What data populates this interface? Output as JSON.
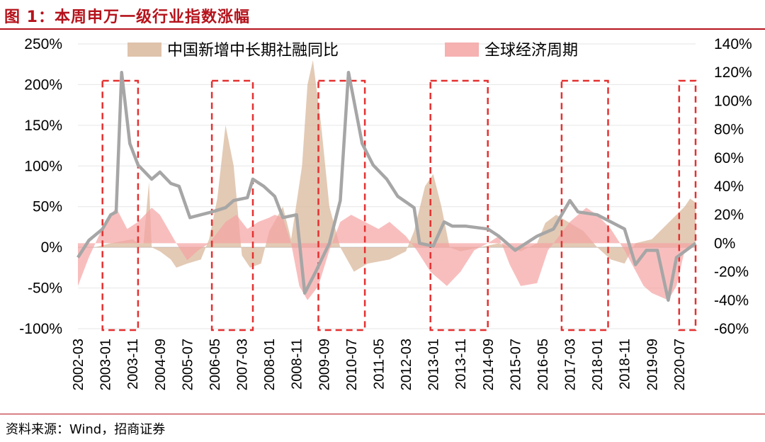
{
  "caption": "图 1：本周申万一级行业指数涨幅",
  "source": "资料来源：Wind，招商证券",
  "colors": {
    "caption": "#b5121b",
    "credit": "#d9b89c",
    "global": "#f5a3a3",
    "overlap": "#e08c78",
    "index_line": "#a6a6a6",
    "box": "#e53030"
  },
  "chart_data": {
    "type": "area",
    "grid": true,
    "legend_position": "top",
    "left_axis": {
      "range": [
        -100,
        250
      ],
      "ticks": [
        "250%",
        "200%",
        "150%",
        "100%",
        "50%",
        "0%",
        "-50%",
        "-100%"
      ]
    },
    "right_axis": {
      "range": [
        -60,
        140
      ],
      "ticks": [
        "140%",
        "120%",
        "100%",
        "80%",
        "60%",
        "40%",
        "20%",
        "0%",
        "-20%",
        "-40%",
        "-60%"
      ]
    },
    "x_ticks": [
      "2002-03",
      "2003-01",
      "2003-11",
      "2004-09",
      "2005-07",
      "2006-05",
      "2007-03",
      "2008-01",
      "2008-11",
      "2009-09",
      "2010-07",
      "2011-05",
      "2012-03",
      "2013-01",
      "2013-11",
      "2014-09",
      "2015-07",
      "2016-05",
      "2017-03",
      "2018-01",
      "2018-11",
      "2019-09",
      "2020-07"
    ],
    "x_range": [
      "2002-03",
      "2021-01"
    ],
    "series": [
      {
        "name": "中国新增中长期社融同比",
        "axis": "left",
        "style": "area",
        "points": [
          [
            "2002-03",
            0
          ],
          [
            "2002-09",
            0
          ],
          [
            "2003-03",
            5
          ],
          [
            "2003-11",
            10
          ],
          [
            "2004-01",
            5
          ],
          [
            "2004-03",
            5
          ],
          [
            "2004-05",
            80
          ],
          [
            "2004-06",
            0
          ],
          [
            "2004-09",
            -5
          ],
          [
            "2005-01",
            -15
          ],
          [
            "2005-03",
            -25
          ],
          [
            "2005-07",
            -20
          ],
          [
            "2005-12",
            -15
          ],
          [
            "2006-03",
            10
          ],
          [
            "2006-06",
            60
          ],
          [
            "2006-09",
            150
          ],
          [
            "2006-12",
            100
          ],
          [
            "2007-03",
            -10
          ],
          [
            "2007-06",
            -25
          ],
          [
            "2007-10",
            -20
          ],
          [
            "2008-01",
            20
          ],
          [
            "2008-06",
            50
          ],
          [
            "2008-09",
            10
          ],
          [
            "2009-01",
            100
          ],
          [
            "2009-03",
            200
          ],
          [
            "2009-05",
            230
          ],
          [
            "2009-08",
            150
          ],
          [
            "2009-11",
            50
          ],
          [
            "2010-03",
            0
          ],
          [
            "2010-08",
            -30
          ],
          [
            "2011-01",
            -20
          ],
          [
            "2011-09",
            -15
          ],
          [
            "2012-03",
            -5
          ],
          [
            "2012-06",
            20
          ],
          [
            "2012-10",
            75
          ],
          [
            "2013-01",
            90
          ],
          [
            "2013-04",
            50
          ],
          [
            "2013-07",
            0
          ],
          [
            "2013-11",
            -5
          ],
          [
            "2014-06",
            0
          ],
          [
            "2015-01",
            5
          ],
          [
            "2015-09",
            -5
          ],
          [
            "2016-03",
            5
          ],
          [
            "2016-06",
            30
          ],
          [
            "2016-10",
            40
          ],
          [
            "2017-03",
            30
          ],
          [
            "2017-08",
            20
          ],
          [
            "2018-01",
            0
          ],
          [
            "2018-06",
            -15
          ],
          [
            "2018-11",
            -20
          ],
          [
            "2019-03",
            5
          ],
          [
            "2019-09",
            10
          ],
          [
            "2020-03",
            30
          ],
          [
            "2020-09",
            50
          ],
          [
            "2020-11",
            60
          ],
          [
            "2021-01",
            55
          ]
        ]
      },
      {
        "name": "全球经济周期",
        "axis": "right",
        "style": "area",
        "points": [
          [
            "2002-03",
            -30
          ],
          [
            "2002-07",
            -10
          ],
          [
            "2003-01",
            15
          ],
          [
            "2003-05",
            25
          ],
          [
            "2003-09",
            10
          ],
          [
            "2004-01",
            15
          ],
          [
            "2004-06",
            25
          ],
          [
            "2004-09",
            20
          ],
          [
            "2005-03",
            0
          ],
          [
            "2005-07",
            -12
          ],
          [
            "2005-11",
            -5
          ],
          [
            "2006-03",
            0
          ],
          [
            "2006-09",
            15
          ],
          [
            "2007-01",
            20
          ],
          [
            "2007-05",
            10
          ],
          [
            "2007-09",
            15
          ],
          [
            "2008-01",
            18
          ],
          [
            "2008-03",
            20
          ],
          [
            "2008-06",
            18
          ],
          [
            "2008-09",
            0
          ],
          [
            "2008-12",
            -30
          ],
          [
            "2009-03",
            -40
          ],
          [
            "2009-07",
            -30
          ],
          [
            "2009-11",
            -5
          ],
          [
            "2010-03",
            15
          ],
          [
            "2010-07",
            20
          ],
          [
            "2010-12",
            15
          ],
          [
            "2011-05",
            10
          ],
          [
            "2011-09",
            15
          ],
          [
            "2012-03",
            5
          ],
          [
            "2012-07",
            -5
          ],
          [
            "2012-12",
            -20
          ],
          [
            "2013-06",
            -30
          ],
          [
            "2013-11",
            -20
          ],
          [
            "2014-04",
            -5
          ],
          [
            "2014-09",
            0
          ],
          [
            "2015-01",
            5
          ],
          [
            "2015-05",
            -15
          ],
          [
            "2015-09",
            -30
          ],
          [
            "2016-03",
            -28
          ],
          [
            "2016-07",
            -5
          ],
          [
            "2016-11",
            5
          ],
          [
            "2017-03",
            15
          ],
          [
            "2017-09",
            25
          ],
          [
            "2018-01",
            20
          ],
          [
            "2018-06",
            10
          ],
          [
            "2018-11",
            -5
          ],
          [
            "2019-06",
            -30
          ],
          [
            "2019-09",
            -35
          ],
          [
            "2020-03",
            -40
          ],
          [
            "2020-06",
            -30
          ],
          [
            "2020-09",
            -5
          ],
          [
            "2021-01",
            0
          ]
        ]
      },
      {
        "name": "",
        "axis": "right",
        "style": "line",
        "points": [
          [
            "2002-03",
            -10
          ],
          [
            "2002-07",
            2
          ],
          [
            "2002-12",
            10
          ],
          [
            "2003-03",
            20
          ],
          [
            "2003-05",
            22
          ],
          [
            "2003-07",
            120
          ],
          [
            "2003-10",
            70
          ],
          [
            "2004-01",
            55
          ],
          [
            "2004-06",
            45
          ],
          [
            "2004-09",
            50
          ],
          [
            "2005-01",
            42
          ],
          [
            "2005-04",
            40
          ],
          [
            "2005-08",
            18
          ],
          [
            "2005-12",
            20
          ],
          [
            "2006-04",
            22
          ],
          [
            "2006-09",
            25
          ],
          [
            "2006-12",
            30
          ],
          [
            "2007-05",
            32
          ],
          [
            "2007-07",
            45
          ],
          [
            "2007-11",
            40
          ],
          [
            "2008-03",
            33
          ],
          [
            "2008-06",
            18
          ],
          [
            "2008-11",
            20
          ],
          [
            "2009-02",
            -35
          ],
          [
            "2009-06",
            -20
          ],
          [
            "2009-11",
            0
          ],
          [
            "2010-03",
            30
          ],
          [
            "2010-06",
            120
          ],
          [
            "2010-11",
            70
          ],
          [
            "2011-03",
            55
          ],
          [
            "2011-08",
            45
          ],
          [
            "2011-12",
            33
          ],
          [
            "2012-03",
            29
          ],
          [
            "2012-06",
            25
          ],
          [
            "2012-08",
            0
          ],
          [
            "2013-01",
            -2
          ],
          [
            "2013-05",
            15
          ],
          [
            "2013-08",
            12
          ],
          [
            "2014-01",
            12
          ],
          [
            "2014-09",
            10
          ],
          [
            "2015-01",
            5
          ],
          [
            "2015-07",
            -5
          ],
          [
            "2016-03",
            5
          ],
          [
            "2016-09",
            10
          ],
          [
            "2017-03",
            30
          ],
          [
            "2017-06",
            22
          ],
          [
            "2018-01",
            20
          ],
          [
            "2018-06",
            15
          ],
          [
            "2018-11",
            10
          ],
          [
            "2019-03",
            -15
          ],
          [
            "2019-07",
            -5
          ],
          [
            "2019-11",
            -5
          ],
          [
            "2020-03",
            -40
          ],
          [
            "2020-06",
            -10
          ],
          [
            "2021-01",
            0
          ]
        ]
      }
    ],
    "highlight_periods": [
      [
        "2002-12",
        "2004-01"
      ],
      [
        "2006-04",
        "2007-07"
      ],
      [
        "2009-07",
        "2010-12"
      ],
      [
        "2012-12",
        "2014-09"
      ],
      [
        "2016-12",
        "2018-05"
      ],
      [
        "2020-07",
        "2021-01"
      ]
    ]
  }
}
